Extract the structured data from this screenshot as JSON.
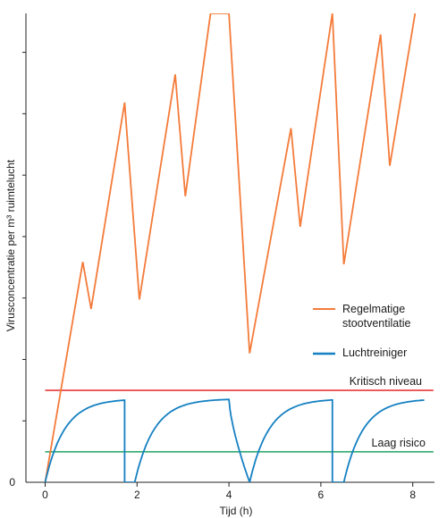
{
  "chart_data": {
    "type": "line",
    "xlabel": "Tijd (h)",
    "ylabel": "Virusconcentratie per m³ ruimtelucht",
    "xlim": [
      -0.5,
      8.45
    ],
    "ylim": [
      0,
      100
    ],
    "x_ticks": [
      0,
      2,
      4,
      6,
      8
    ],
    "x_tick_labels": [
      "0",
      "2",
      "4",
      "6",
      "8"
    ],
    "y_tick_labels": [
      "0"
    ],
    "y_ticks_unlabeled": [
      13.1,
      26.2,
      39.3,
      52.4,
      65.5,
      78.6,
      91.7
    ],
    "grid": false,
    "legend_placement": "right",
    "series": [
      {
        "name": "Regelmatige stootventilatie",
        "legend_lines": [
          "Regelmatige",
          "stootventilatie"
        ],
        "color": "#f47b3a",
        "x": [
          0,
          0.82,
          1.0,
          1.73,
          2.05,
          2.83,
          3.05,
          3.6,
          4.0,
          4.45,
          5.35,
          5.55,
          6.25,
          6.5,
          7.3,
          7.5,
          8.05
        ],
        "y": [
          0,
          47.0,
          37.0,
          81.0,
          39.0,
          87.0,
          61.0,
          100,
          100,
          27.5,
          75.5,
          54.5,
          100,
          46.5,
          95.5,
          67.5,
          100
        ]
      },
      {
        "name": "Luchtreiniger",
        "color": "#1580c2",
        "shape": "sawtooth-recovery",
        "cycles": [
          [
            0,
            1.73
          ],
          [
            1.95,
            4.0
          ],
          [
            4.45,
            6.25
          ],
          [
            6.5,
            8.25
          ]
        ],
        "plateau": 17.8
      }
    ],
    "reference_lines": [
      {
        "name": "Kritisch niveau",
        "y": 19.6,
        "color": "#e8393a"
      },
      {
        "name": "Laag risico",
        "y": 6.5,
        "color": "#1fa463"
      }
    ]
  }
}
